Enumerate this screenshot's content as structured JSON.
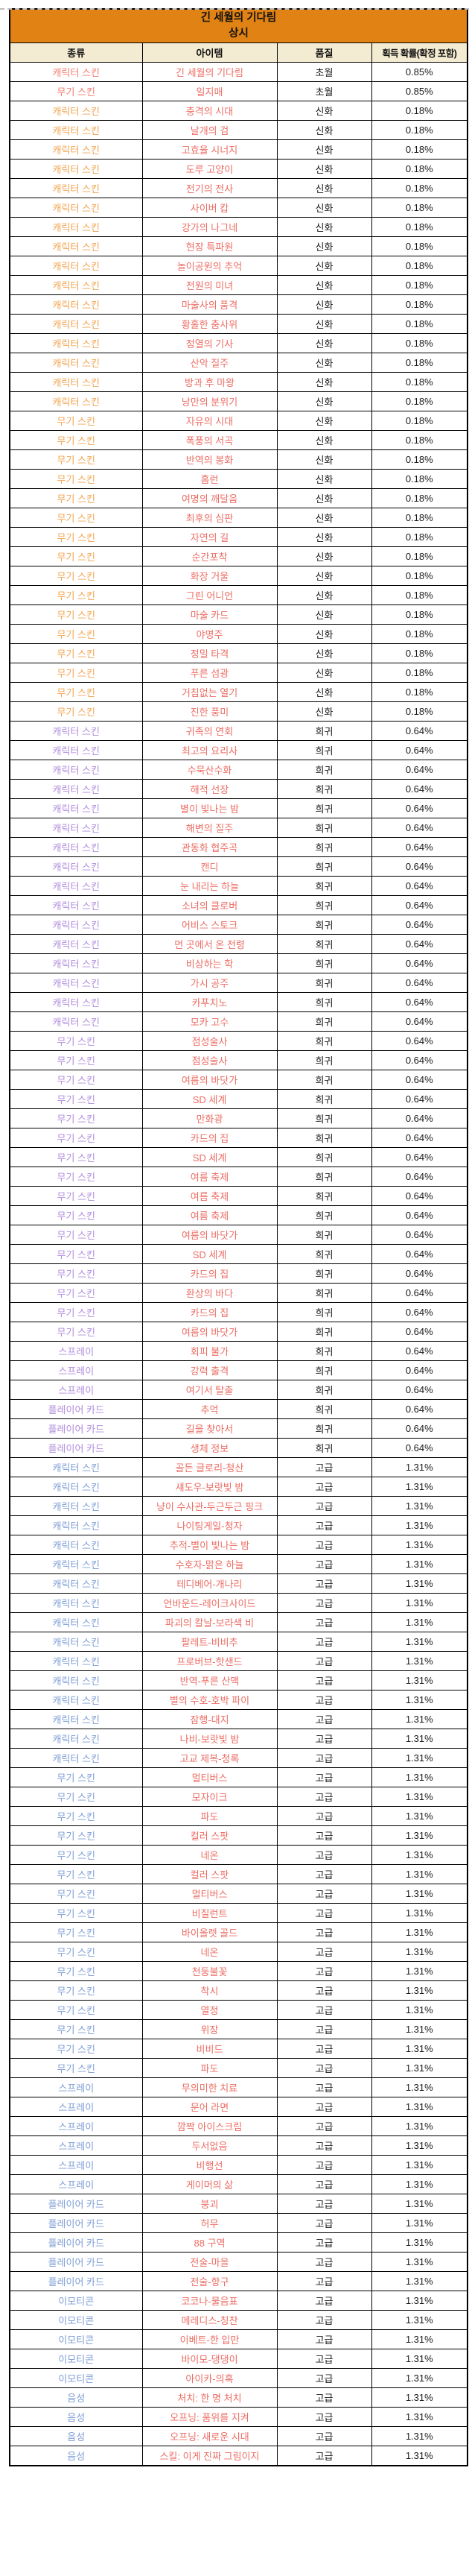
{
  "header": {
    "title": "긴 세월의 기다림",
    "subtitle": "상시"
  },
  "table": {
    "columns": [
      "종류",
      "아이템",
      "품질",
      "획득 확률(확정 포함)"
    ],
    "sections": [
      {
        "tier": "transcend",
        "quality": "초월",
        "rate": "0.85%",
        "items": [
          [
            "캐릭터 스킨",
            "긴 세월의 기다림"
          ],
          [
            "무기 스킨",
            "일지매"
          ]
        ]
      },
      {
        "tier": "myth",
        "quality": "신화",
        "rate": "0.18%",
        "items": [
          [
            "캐릭터 스킨",
            "충격의 시대"
          ],
          [
            "캐릭터 스킨",
            "날개의 검"
          ],
          [
            "캐릭터 스킨",
            "고효율 시너지"
          ],
          [
            "캐릭터 스킨",
            "도루 고양이"
          ],
          [
            "캐릭터 스킨",
            "전기의 전사"
          ],
          [
            "캐릭터 스킨",
            "사이버 캅"
          ],
          [
            "캐릭터 스킨",
            "강가의 나그네"
          ],
          [
            "캐릭터 스킨",
            "현장 특파원"
          ],
          [
            "캐릭터 스킨",
            "놀이공원의 추억"
          ],
          [
            "캐릭터 스킨",
            "전원의 미녀"
          ],
          [
            "캐릭터 스킨",
            "마술사의 품격"
          ],
          [
            "캐릭터 스킨",
            "황홀한 춤사위"
          ],
          [
            "캐릭터 스킨",
            "정열의 기사"
          ],
          [
            "캐릭터 스킨",
            "산악 질주"
          ],
          [
            "캐릭터 스킨",
            "방과 후 마왕"
          ],
          [
            "캐릭터 스킨",
            "낭만의 분위기"
          ],
          [
            "무기 스킨",
            "자유의 시대"
          ],
          [
            "무기 스킨",
            "폭풍의 서곡"
          ],
          [
            "무기 스킨",
            "반역의 봉화"
          ],
          [
            "무기 스킨",
            "홈런"
          ],
          [
            "무기 스킨",
            "여명의 깨달음"
          ],
          [
            "무기 스킨",
            "최후의 심판"
          ],
          [
            "무기 스킨",
            "자연의 길"
          ],
          [
            "무기 스킨",
            "순간포착"
          ],
          [
            "무기 스킨",
            "화장 거울"
          ],
          [
            "무기 스킨",
            "그린 어니언"
          ],
          [
            "무기 스킨",
            "마술 카드"
          ],
          [
            "무기 스킨",
            "야명주"
          ],
          [
            "무기 스킨",
            "정밀 타격"
          ],
          [
            "무기 스킨",
            "푸른 섬광"
          ],
          [
            "무기 스킨",
            "거침없는 열기"
          ],
          [
            "무기 스킨",
            "진한 풍미"
          ]
        ]
      },
      {
        "tier": "rare",
        "quality": "희귀",
        "rate": "0.64%",
        "items": [
          [
            "캐릭터 스킨",
            "귀족의 연회"
          ],
          [
            "캐릭터 스킨",
            "최고의 요리사"
          ],
          [
            "캐릭터 스킨",
            "수묵산수화"
          ],
          [
            "캐릭터 스킨",
            "해적 선장"
          ],
          [
            "캐릭터 스킨",
            "별이 빛나는 밤"
          ],
          [
            "캐릭터 스킨",
            "해변의 질주"
          ],
          [
            "캐릭터 스킨",
            "관동화 협주곡"
          ],
          [
            "캐릭터 스킨",
            "캔디"
          ],
          [
            "캐릭터 스킨",
            "눈 내리는 하늘"
          ],
          [
            "캐릭터 스킨",
            "소녀의 클로버"
          ],
          [
            "캐릭터 스킨",
            "어비스 스토크"
          ],
          [
            "캐릭터 스킨",
            "먼 곳에서 온 전령"
          ],
          [
            "캐릭터 스킨",
            "비상하는 학"
          ],
          [
            "캐릭터 스킨",
            "가시 공주"
          ],
          [
            "캐릭터 스킨",
            "카푸치노"
          ],
          [
            "캐릭터 스킨",
            "모카 고수"
          ],
          [
            "무기 스킨",
            "점성술사"
          ],
          [
            "무기 스킨",
            "점성술사"
          ],
          [
            "무기 스킨",
            "여름의 바닷가"
          ],
          [
            "무기 스킨",
            "SD 세계"
          ],
          [
            "무기 스킨",
            "만화광"
          ],
          [
            "무기 스킨",
            "카드의 집"
          ],
          [
            "무기 스킨",
            "SD 세계"
          ],
          [
            "무기 스킨",
            "여름 축제"
          ],
          [
            "무기 스킨",
            "여름 축제"
          ],
          [
            "무기 스킨",
            "여름 축제"
          ],
          [
            "무기 스킨",
            "여름의 바닷가"
          ],
          [
            "무기 스킨",
            "SD 세계"
          ],
          [
            "무기 스킨",
            "카드의 집"
          ],
          [
            "무기 스킨",
            "환상의 바다"
          ],
          [
            "무기 스킨",
            "카드의 집"
          ],
          [
            "무기 스킨",
            "여름의 바닷가"
          ],
          [
            "스프레이",
            "회피 불가"
          ],
          [
            "스프레이",
            "강력 출격"
          ],
          [
            "스프레이",
            "여기서 탈출"
          ],
          [
            "플레이어 카드",
            "추억"
          ],
          [
            "플레이어 카드",
            "길을 찾아서"
          ],
          [
            "플레이어 카드",
            "생체 정보"
          ]
        ]
      },
      {
        "tier": "advanced",
        "quality": "고급",
        "rate": "1.31%",
        "items": [
          [
            "캐릭터 스킨",
            "골든 글로리-청산"
          ],
          [
            "캐릭터 스킨",
            "섀도우-보랏빛 밤"
          ],
          [
            "캐릭터 스킨",
            "냥이 수사관-두근두근 핑크"
          ],
          [
            "캐릭터 스킨",
            "나이팅게일-청자"
          ],
          [
            "캐릭터 스킨",
            "추적-별이 빛나는 밤"
          ],
          [
            "캐릭터 스킨",
            "수호자-맑은 하늘"
          ],
          [
            "캐릭터 스킨",
            "테디베어-개나리"
          ],
          [
            "캐릭터 스킨",
            "언바운드-레이크사이드"
          ],
          [
            "캐릭터 스킨",
            "파괴의 칼날-보라색 비"
          ],
          [
            "캐릭터 스킨",
            "팔레트-비비추"
          ],
          [
            "캐릭터 스킨",
            "프로버브-핫샌드"
          ],
          [
            "캐릭터 스킨",
            "반역-푸른 산맥"
          ],
          [
            "캐릭터 스킨",
            "별의 수호-호박 파이"
          ],
          [
            "캐릭터 스킨",
            "잠행-대지"
          ],
          [
            "캐릭터 스킨",
            "나비-보랏빛 밤"
          ],
          [
            "캐릭터 스킨",
            "고교 제복-청록"
          ],
          [
            "무기 스킨",
            "멀티버스"
          ],
          [
            "무기 스킨",
            "모자이크"
          ],
          [
            "무기 스킨",
            "파도"
          ],
          [
            "무기 스킨",
            "컬러 스팟"
          ],
          [
            "무기 스킨",
            "네온"
          ],
          [
            "무기 스킨",
            "컬러 스팟"
          ],
          [
            "무기 스킨",
            "멀티버스"
          ],
          [
            "무기 스킨",
            "비질런트"
          ],
          [
            "무기 스킨",
            "바이올렛 골드"
          ],
          [
            "무기 스킨",
            "네온"
          ],
          [
            "무기 스킨",
            "천둥불꽃"
          ],
          [
            "무기 스킨",
            "착시"
          ],
          [
            "무기 스킨",
            "열정"
          ],
          [
            "무기 스킨",
            "위장"
          ],
          [
            "무기 스킨",
            "비비드"
          ],
          [
            "무기 스킨",
            "파도"
          ],
          [
            "스프레이",
            "무의미한 치료"
          ],
          [
            "스프레이",
            "문어 라면"
          ],
          [
            "스프레이",
            "깜짝 아이스크림"
          ],
          [
            "스프레이",
            "두서없음"
          ],
          [
            "스프레이",
            "비행선"
          ],
          [
            "스프레이",
            "게이머의 삶"
          ],
          [
            "플레이어 카드",
            "붕괴"
          ],
          [
            "플레이어 카드",
            "허무"
          ],
          [
            "플레이어 카드",
            "88 구역"
          ],
          [
            "플레이어 카드",
            "전술-마을"
          ],
          [
            "플레이어 카드",
            "전술-항구"
          ],
          [
            "이모티콘",
            "코코나-물음표"
          ],
          [
            "이모티콘",
            "메레디스-칭찬"
          ],
          [
            "이모티콘",
            "이베트-한 입만"
          ],
          [
            "이모티콘",
            "바이모-댕댕이"
          ],
          [
            "이모티콘",
            "아이카-의혹"
          ],
          [
            "음성",
            "처치: 한 명 처치"
          ],
          [
            "음성",
            "오프닝: 품위를 지켜"
          ],
          [
            "음성",
            "오프닝: 새로운 시대"
          ],
          [
            "음성",
            "스킬: 이게 진짜 그림이지"
          ]
        ]
      }
    ]
  },
  "colors": {
    "title_bg": "#E08214",
    "header_bg": "#F3ECD2",
    "border": "#000000",
    "text": "#1A1A1A",
    "item_red": "#EC6D64",
    "tier_transcend": "#F47C6E",
    "tier_myth": "#F3A450",
    "tier_rare": "#B08CDE",
    "tier_advanced": "#7E9DD6",
    "rule_gray": "#BDBDBD"
  }
}
